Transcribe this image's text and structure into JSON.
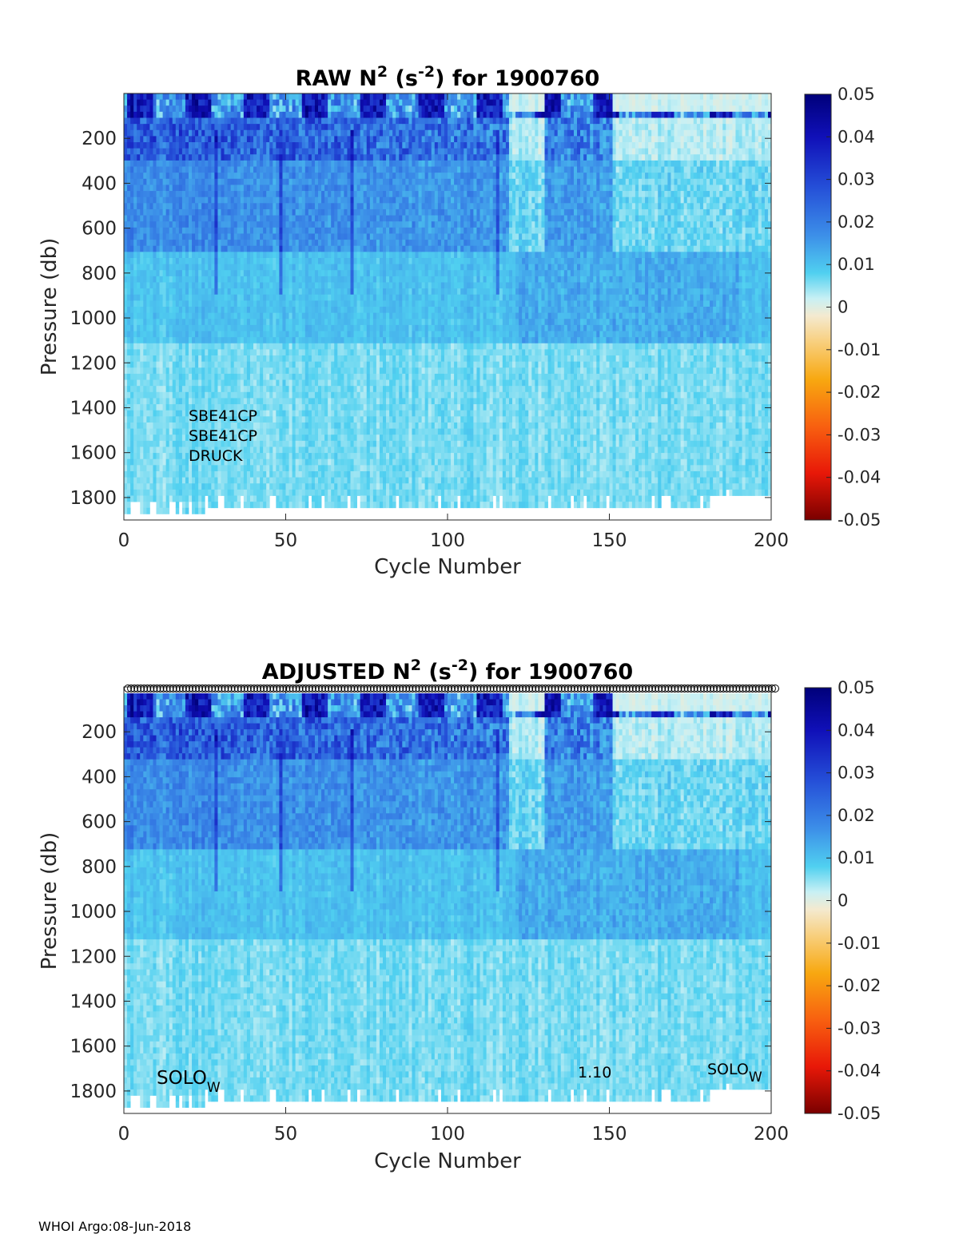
{
  "footer": "WHOI Argo:08-Jun-2018",
  "chart_data": [
    {
      "type": "heatmap",
      "title_main": "RAW N",
      "title_exp1": "2",
      "title_mid": " (s",
      "title_exp2": "-2",
      "title_end": ") for 1900760",
      "xlabel": "Cycle Number",
      "ylabel": "Pressure (db)",
      "xlim": [
        0,
        200
      ],
      "ylim": [
        1900,
        0
      ],
      "xticks": [
        "0",
        "50",
        "100",
        "150",
        "200"
      ],
      "yticks": [
        "200",
        "400",
        "600",
        "800",
        "1000",
        "1200",
        "1400",
        "1600",
        "1800"
      ],
      "colorbar": {
        "ticks": [
          "0.05",
          "0.04",
          "0.03",
          "0.02",
          "0.01",
          "0",
          "-0.01",
          "-0.02",
          "-0.03",
          "-0.04",
          "-0.05"
        ],
        "range": [
          -0.05,
          0.05
        ]
      },
      "annotations": [
        "SBE41CP",
        "SBE41CP",
        "DRUCK"
      ]
    },
    {
      "type": "heatmap",
      "title_main": "ADJUSTED N",
      "title_exp1": "2",
      "title_mid": " (s",
      "title_exp2": "-2",
      "title_end": ") for 1900760",
      "xlabel": "Cycle Number",
      "ylabel": "Pressure (db)",
      "xlim": [
        0,
        200
      ],
      "ylim": [
        1900,
        0
      ],
      "xticks": [
        "0",
        "50",
        "100",
        "150",
        "200"
      ],
      "yticks": [
        "200",
        "400",
        "600",
        "800",
        "1000",
        "1200",
        "1400",
        "1600",
        "1800"
      ],
      "colorbar": {
        "ticks": [
          "0.05",
          "0.04",
          "0.03",
          "0.02",
          "0.01",
          "0",
          "-0.01",
          "-0.02",
          "-0.03",
          "-0.04",
          "-0.05"
        ],
        "range": [
          -0.05,
          0.05
        ]
      },
      "annotations": [
        {
          "text": "SOLO",
          "sub": "W"
        },
        {
          "text": "1.10"
        },
        {
          "text": "SOLO",
          "sub": "W"
        }
      ],
      "marker_row": "circles at every cycle along top edge"
    }
  ]
}
